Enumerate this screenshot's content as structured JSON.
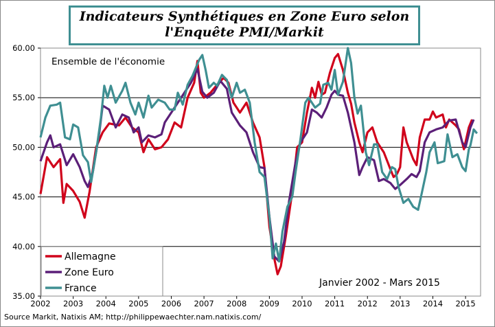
{
  "chart_data": {
    "type": "line",
    "title": "Indicateurs Synthétiques en Zone Euro selon l'Enquête PMI/Markit",
    "title_lines": [
      "Indicateurs Synthétiques en Zone Euro selon",
      "l'Enquête PMI/Markit"
    ],
    "subtitle": "Ensemble de l'économie",
    "annotation": "Janvier 2002 - Mars 2015",
    "xlabel": "",
    "ylabel": "",
    "xlim": [
      2002,
      2015.46
    ],
    "ylim": [
      35,
      60
    ],
    "x_ticks": [
      "2002",
      "2003",
      "2004",
      "2005",
      "2006",
      "2007",
      "2008",
      "2009",
      "2010",
      "2011",
      "2012",
      "2013",
      "2014",
      "2015"
    ],
    "y_ticks": [
      "35.00",
      "40.00",
      "45.00",
      "50.00",
      "55.00",
      "60.00"
    ],
    "grid": "horizontal",
    "legend": "bottom-left",
    "series": [
      {
        "name": "Allemagne",
        "color": "#d0021b",
        "x": [
          2002.0,
          2002.2,
          2002.4,
          2002.6,
          2002.7,
          2002.8,
          2003.0,
          2003.2,
          2003.35,
          2003.5,
          2003.7,
          2003.9,
          2004.1,
          2004.4,
          2004.6,
          2004.8,
          2005.0,
          2005.15,
          2005.3,
          2005.5,
          2005.7,
          2005.9,
          2006.1,
          2006.3,
          2006.5,
          2006.7,
          2006.8,
          2006.9,
          2007.0,
          2007.2,
          2007.4,
          2007.6,
          2007.75,
          2007.9,
          2008.1,
          2008.3,
          2008.5,
          2008.7,
          2008.85,
          2009.0,
          2009.15,
          2009.25,
          2009.35,
          2009.5,
          2009.7,
          2009.85,
          2010.0,
          2010.15,
          2010.3,
          2010.4,
          2010.5,
          2010.6,
          2010.7,
          2010.85,
          2011.0,
          2011.1,
          2011.25,
          2011.4,
          2011.5,
          2011.6,
          2011.75,
          2011.85,
          2012.0,
          2012.15,
          2012.3,
          2012.5,
          2012.7,
          2012.8,
          2012.9,
          2013.0,
          2013.1,
          2013.2,
          2013.4,
          2013.5,
          2013.6,
          2013.75,
          2013.9,
          2014.0,
          2014.1,
          2014.3,
          2014.4,
          2014.5,
          2014.7,
          2014.8,
          2014.95,
          2015.1,
          2015.2
        ],
        "y": [
          45.3,
          49.0,
          48.0,
          48.8,
          44.4,
          46.3,
          45.6,
          44.5,
          42.9,
          45.5,
          50.0,
          51.5,
          52.4,
          52.2,
          53.0,
          52.0,
          51.5,
          49.5,
          50.8,
          49.8,
          50.0,
          50.8,
          52.5,
          52.0,
          55.0,
          56.5,
          58.7,
          55.5,
          55.0,
          55.5,
          56.3,
          57.0,
          56.5,
          54.5,
          53.5,
          54.5,
          52.5,
          51.0,
          48.0,
          42.0,
          38.8,
          37.2,
          38.0,
          41.0,
          45.5,
          50.0,
          50.5,
          53.5,
          56.0,
          55.0,
          56.6,
          55.3,
          55.5,
          57.5,
          59.0,
          59.4,
          57.8,
          55.5,
          54.4,
          52.5,
          50.5,
          49.5,
          51.5,
          52.0,
          50.5,
          49.5,
          47.8,
          47.0,
          47.3,
          48.0,
          52.0,
          50.5,
          48.8,
          48.2,
          51.0,
          52.8,
          52.8,
          53.6,
          53.0,
          53.3,
          52.0,
          52.8,
          52.2,
          51.8,
          49.8,
          52.0,
          52.8
        ]
      },
      {
        "name": "Zone Euro",
        "color": "#5b1f78",
        "x": [
          2002.0,
          2002.2,
          2002.3,
          2002.4,
          2002.6,
          2002.8,
          2003.0,
          2003.2,
          2003.35,
          2003.45,
          2003.6,
          2003.8,
          2003.9,
          2004.1,
          2004.3,
          2004.5,
          2004.7,
          2004.85,
          2005.0,
          2005.1,
          2005.3,
          2005.5,
          2005.7,
          2005.8,
          2006.0,
          2006.3,
          2006.6,
          2006.8,
          2006.95,
          2007.1,
          2007.3,
          2007.5,
          2007.7,
          2007.85,
          2008.1,
          2008.3,
          2008.5,
          2008.7,
          2008.85,
          2009.0,
          2009.15,
          2009.3,
          2009.45,
          2009.6,
          2009.8,
          2009.95,
          2010.15,
          2010.3,
          2010.45,
          2010.6,
          2010.75,
          2010.9,
          2011.0,
          2011.1,
          2011.25,
          2011.4,
          2011.6,
          2011.75,
          2011.85,
          2012.0,
          2012.2,
          2012.35,
          2012.5,
          2012.7,
          2012.85,
          2013.0,
          2013.2,
          2013.35,
          2013.5,
          2013.6,
          2013.75,
          2013.9,
          2014.1,
          2014.3,
          2014.5,
          2014.7,
          2014.9,
          2015.0,
          2015.15,
          2015.25
        ],
        "y": [
          48.6,
          50.5,
          51.2,
          50.0,
          50.3,
          48.2,
          49.3,
          48.0,
          46.6,
          46.0,
          47.5,
          51.5,
          54.2,
          53.8,
          52.0,
          53.3,
          53.0,
          51.5,
          52.0,
          50.5,
          51.2,
          51.0,
          51.3,
          52.5,
          53.5,
          55.0,
          56.5,
          57.9,
          55.6,
          55.0,
          55.5,
          56.7,
          55.9,
          53.5,
          52.2,
          51.5,
          49.5,
          48.0,
          47.9,
          43.0,
          39.0,
          38.5,
          40.5,
          44.5,
          48.5,
          50.5,
          51.5,
          53.8,
          53.5,
          53.0,
          54.0,
          55.3,
          55.7,
          55.3,
          55.2,
          53.5,
          50.5,
          47.2,
          48.0,
          49.0,
          48.7,
          46.6,
          46.8,
          46.4,
          45.8,
          46.2,
          46.8,
          47.3,
          47.0,
          47.6,
          50.5,
          51.5,
          51.8,
          52.0,
          52.7,
          52.8,
          50.5,
          50.0,
          52.0,
          52.8
        ]
      },
      {
        "name": "France",
        "color": "#3f8f92",
        "x": [
          2002.0,
          2002.15,
          2002.3,
          2002.5,
          2002.6,
          2002.75,
          2002.9,
          2003.0,
          2003.15,
          2003.3,
          2003.45,
          2003.55,
          2003.7,
          2003.85,
          2003.95,
          2004.05,
          2004.15,
          2004.3,
          2004.5,
          2004.6,
          2004.75,
          2004.9,
          2005.0,
          2005.15,
          2005.3,
          2005.4,
          2005.6,
          2005.8,
          2005.95,
          2006.1,
          2006.2,
          2006.35,
          2006.5,
          2006.65,
          2006.85,
          2006.95,
          2007.05,
          2007.15,
          2007.3,
          2007.4,
          2007.55,
          2007.7,
          2007.85,
          2008.0,
          2008.1,
          2008.25,
          2008.4,
          2008.55,
          2008.7,
          2008.85,
          2009.0,
          2009.05,
          2009.1,
          2009.2,
          2009.3,
          2009.4,
          2009.55,
          2009.7,
          2009.8,
          2009.95,
          2010.1,
          2010.2,
          2010.4,
          2010.55,
          2010.65,
          2010.8,
          2010.9,
          2011.0,
          2011.1,
          2011.25,
          2011.4,
          2011.5,
          2011.6,
          2011.7,
          2011.8,
          2011.95,
          2012.05,
          2012.2,
          2012.3,
          2012.45,
          2012.6,
          2012.75,
          2012.85,
          2012.95,
          2013.1,
          2013.25,
          2013.4,
          2013.55,
          2013.65,
          2013.8,
          2013.9,
          2014.05,
          2014.15,
          2014.25,
          2014.35,
          2014.45,
          2014.6,
          2014.75,
          2014.9,
          2015.0,
          2015.1,
          2015.15,
          2015.25,
          2015.35
        ],
        "y": [
          51.0,
          53.0,
          54.2,
          54.3,
          54.5,
          51.0,
          50.8,
          52.3,
          52.0,
          49.2,
          48.5,
          46.5,
          49.5,
          53.0,
          56.2,
          55.0,
          56.2,
          54.5,
          55.7,
          56.5,
          54.5,
          53.3,
          54.5,
          53.0,
          55.2,
          54.0,
          54.8,
          54.5,
          53.8,
          53.8,
          55.5,
          54.3,
          56.3,
          57.2,
          58.8,
          59.3,
          57.8,
          56.0,
          56.5,
          56.2,
          57.3,
          56.8,
          55.0,
          56.5,
          55.5,
          55.8,
          54.5,
          50.5,
          47.5,
          47.0,
          43.0,
          41.0,
          38.8,
          40.3,
          38.5,
          41.5,
          44.0,
          45.0,
          47.5,
          50.8,
          54.5,
          55.0,
          54.0,
          54.4,
          56.3,
          56.5,
          55.8,
          57.8,
          55.3,
          56.6,
          60.0,
          58.5,
          55.0,
          53.4,
          54.2,
          49.5,
          48.2,
          50.3,
          50.3,
          47.5,
          46.8,
          48.0,
          47.8,
          46.0,
          44.4,
          44.8,
          44.0,
          43.7,
          45.2,
          47.5,
          49.5,
          50.5,
          48.4,
          48.5,
          48.6,
          51.3,
          49.0,
          49.3,
          48.0,
          47.6,
          49.8,
          50.2,
          51.8,
          51.4
        ]
      }
    ]
  },
  "source": "Source Markit, Natixis AM;  http://philippewaechter.nam.natixis.com/"
}
